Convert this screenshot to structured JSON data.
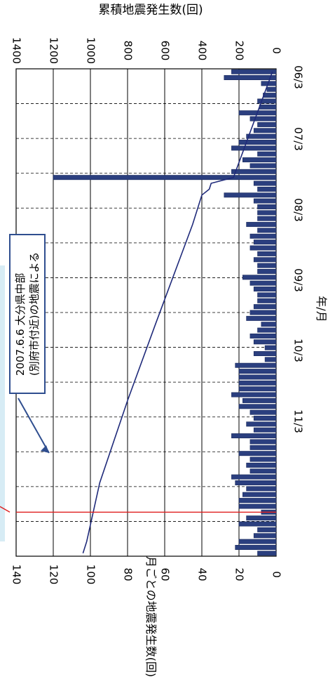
{
  "chart_data": {
    "type": "bar",
    "title": "",
    "x_axis": {
      "label": "年/月",
      "tick_labels": [
        "06/3",
        "07/3",
        "08/3",
        "09/3",
        "10/3",
        "11/3"
      ]
    },
    "left_axis": {
      "label": "月ごとの地震発生数(回)",
      "range": [
        0,
        140
      ],
      "tick_labels": [
        "0",
        "20",
        "40",
        "60",
        "80",
        "100",
        "120",
        "140"
      ]
    },
    "right_axis": {
      "label": "累積地震発生数(回)",
      "range": [
        0,
        1400
      ],
      "tick_labels": [
        "0",
        "200",
        "400",
        "600",
        "800",
        "1000",
        "1200",
        "1400"
      ]
    },
    "series": [
      {
        "type": "bar",
        "axis": "left",
        "color": "#2b3f7f",
        "values": [
          24,
          28,
          8,
          5,
          7,
          10,
          9,
          20,
          14,
          10,
          12,
          16,
          20,
          24,
          10,
          18,
          14,
          24,
          120,
          12,
          10,
          28,
          12,
          10,
          10,
          10,
          16,
          10,
          14,
          12,
          14,
          10,
          12,
          10,
          10,
          18,
          14,
          12,
          10,
          10,
          12,
          14,
          16,
          8,
          10,
          14,
          12,
          6,
          12,
          6,
          22,
          20,
          20,
          20,
          20,
          24,
          18,
          20,
          14,
          12,
          16,
          12,
          24,
          14,
          14,
          20,
          14,
          16,
          14,
          24,
          22,
          16,
          18,
          20,
          20,
          8,
          16,
          20,
          10,
          12,
          20,
          22,
          10
        ]
      },
      {
        "type": "line",
        "axis": "right",
        "color": "#1f2a7a",
        "values": [
          [
            0,
            20
          ],
          [
            18,
            230
          ],
          [
            19,
            350
          ],
          [
            20,
            360
          ],
          [
            21,
            400
          ],
          [
            26,
            450
          ],
          [
            43,
            650
          ],
          [
            56,
            800
          ],
          [
            70,
            950
          ],
          [
            80,
            1020
          ],
          [
            82,
            1040
          ]
        ]
      }
    ],
    "grid": true,
    "marker_line": {
      "color": "#e02020",
      "x_index": 75.5
    },
    "annotation": {
      "lines": [
        "2007.6.6 大分県中部",
        "(別府市付近)の地震による"
      ]
    }
  }
}
